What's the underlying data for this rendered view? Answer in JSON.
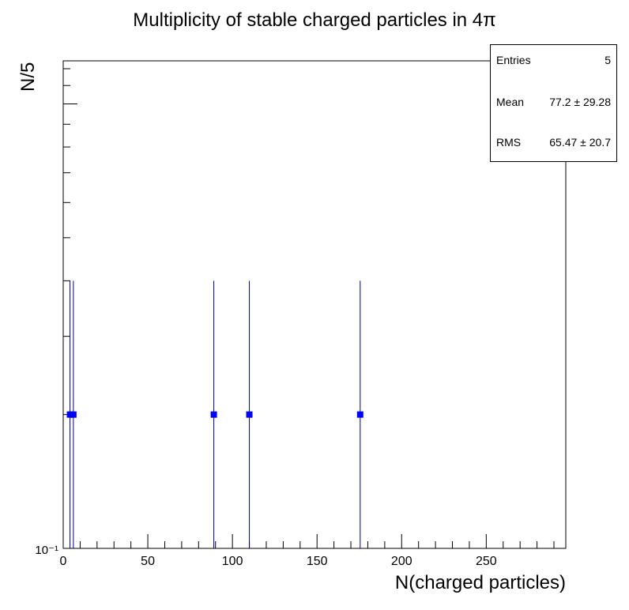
{
  "chart_data": {
    "type": "scatter",
    "title": "Multiplicity of stable charged particles in 4π",
    "xlabel": "N(charged particles)",
    "ylabel": "N/5",
    "xlim": [
      0,
      297
    ],
    "y_scale": "log",
    "ylim": [
      0.1,
      1.25
    ],
    "y_tick_label": "10⁻¹",
    "x_ticks": [
      "0",
      "50",
      "100",
      "150",
      "200",
      "250"
    ],
    "x_tick_values": [
      0,
      50,
      100,
      150,
      200,
      250
    ],
    "series": [
      {
        "color": "#0000ff",
        "error_color": "#000099",
        "x": [
          4,
          6,
          89,
          110,
          175.5
        ],
        "values": [
          0.2,
          0.2,
          0.2,
          0.2,
          0.2
        ],
        "err_low": [
          0.2,
          0.2,
          0.2,
          0.2,
          0.2
        ],
        "err_high": [
          0.2,
          0.2,
          0.2,
          0.2,
          0.2
        ]
      }
    ],
    "grid": false,
    "stats_box": {
      "rows": [
        {
          "key": "Entries",
          "value": "5"
        },
        {
          "key": "Mean",
          "value": "77.2 ±  29.28"
        },
        {
          "key": "RMS",
          "value": "65.47 ±  20.7"
        }
      ],
      "placement": "top-right"
    }
  }
}
